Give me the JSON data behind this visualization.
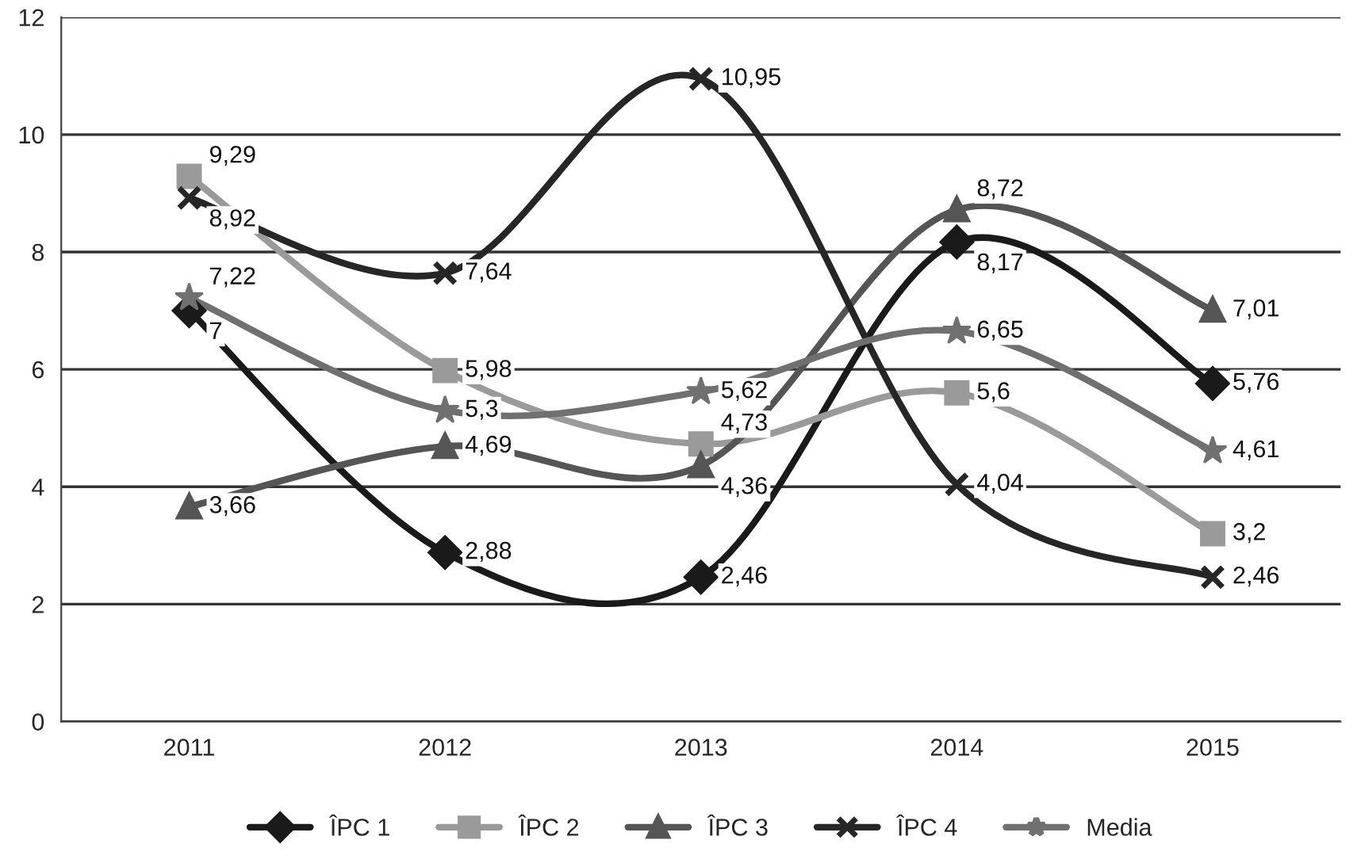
{
  "chart_data": {
    "type": "line",
    "categories": [
      "2011",
      "2012",
      "2013",
      "2014",
      "2015"
    ],
    "series": [
      {
        "name": "ÎPC 1",
        "color": "#1a1a1a",
        "marker": "diamond",
        "values": [
          7,
          2.88,
          2.46,
          8.17,
          5.76
        ],
        "value_labels": [
          "7",
          "2,88",
          "2,46",
          "8,17",
          "5,76"
        ]
      },
      {
        "name": "ÎPC 2",
        "color": "#9a9a9a",
        "marker": "square",
        "values": [
          9.29,
          5.98,
          4.73,
          5.6,
          3.2
        ],
        "value_labels": [
          "9,29",
          "5,98",
          "4,73",
          "5,6",
          "3,2"
        ]
      },
      {
        "name": "ÎPC 3",
        "color": "#555555",
        "marker": "triangle",
        "values": [
          3.66,
          4.69,
          4.36,
          8.72,
          7.01
        ],
        "value_labels": [
          "3,66",
          "4,69",
          "4,36",
          "8,72",
          "7,01"
        ]
      },
      {
        "name": "ÎPC 4",
        "color": "#262626",
        "marker": "cross",
        "values": [
          8.92,
          7.64,
          10.95,
          4.04,
          2.46
        ],
        "value_labels": [
          "8,92",
          "7,64",
          "10,95",
          "4,04",
          "2,46"
        ]
      },
      {
        "name": "Media",
        "color": "#707070",
        "marker": "star",
        "values": [
          7.22,
          5.3,
          5.62,
          6.65,
          4.61
        ],
        "value_labels": [
          "7,22",
          "5,3",
          "5,62",
          "6,65",
          "4,61"
        ]
      }
    ],
    "ylim": [
      0,
      12
    ],
    "yticks": [
      0,
      2,
      4,
      6,
      8,
      10,
      12
    ],
    "grid": "y",
    "legend": "bottom",
    "line_style": "solid"
  }
}
